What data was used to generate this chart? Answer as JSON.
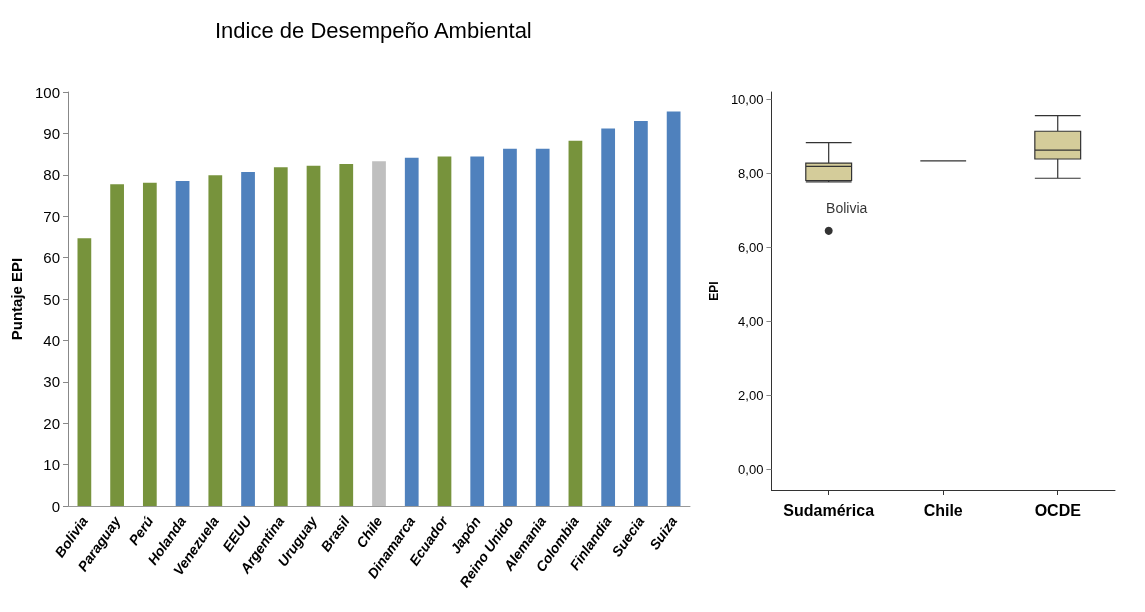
{
  "chart_data": [
    {
      "type": "bar",
      "title": "Indice de Desempeño Ambiental",
      "ylabel": "Puntaje EPI",
      "categories": [
        "Bolivia",
        "Paraguay",
        "Perú",
        "Holanda",
        "Venezuela",
        "EEUU",
        "Argentina",
        "Uruguay",
        "Brasil",
        "Chile",
        "Dinamarca",
        "Ecuador",
        "Japón",
        "Reino Unido",
        "Alemania",
        "Colombia",
        "Finlandia",
        "Suecia",
        "Suiza"
      ],
      "values": [
        64.7,
        77.7,
        78.1,
        78.5,
        79.9,
        80.7,
        81.8,
        82.2,
        82.6,
        83.3,
        84.1,
        84.4,
        84.4,
        86.3,
        86.3,
        88.2,
        91.2,
        93.0,
        95.3
      ],
      "colors": [
        "#77933c",
        "#77933c",
        "#77933c",
        "#4f81bd",
        "#77933c",
        "#4f81bd",
        "#77933c",
        "#77933c",
        "#77933c",
        "#bfbfbf",
        "#4f81bd",
        "#77933c",
        "#4f81bd",
        "#4f81bd",
        "#4f81bd",
        "#77933c",
        "#4f81bd",
        "#4f81bd",
        "#4f81bd"
      ],
      "ylim": [
        0,
        100
      ],
      "yticks": [
        0,
        10,
        20,
        30,
        40,
        50,
        60,
        70,
        80,
        90,
        100
      ]
    },
    {
      "type": "box",
      "ylabel": "EPI",
      "categories": [
        "Sudamérica",
        "Chile",
        "OCDE"
      ],
      "colors": [
        "#d4cc9a",
        "#333333",
        "#d4cc9a"
      ],
      "boxes": [
        {
          "low": 7.77,
          "q1": 7.81,
          "median": 8.19,
          "q3": 8.28,
          "high": 8.83,
          "outliers": [
            6.45
          ]
        },
        {
          "low": 8.34,
          "q1": 8.34,
          "median": 8.34,
          "q3": 8.34,
          "high": 8.34
        },
        {
          "low": 7.87,
          "q1": 8.39,
          "median": 8.63,
          "q3": 9.14,
          "high": 9.56
        }
      ],
      "annotations": [
        "Bolivia"
      ],
      "ylim": [
        -0.55,
        10.2
      ],
      "yticks": [
        {
          "value": 0,
          "label": "0,00"
        },
        {
          "value": 2,
          "label": "2,00"
        },
        {
          "value": 4,
          "label": "4,00"
        },
        {
          "value": 6,
          "label": "6,00"
        },
        {
          "value": 8,
          "label": "8,00"
        },
        {
          "value": 10,
          "label": "10,00"
        }
      ]
    }
  ]
}
